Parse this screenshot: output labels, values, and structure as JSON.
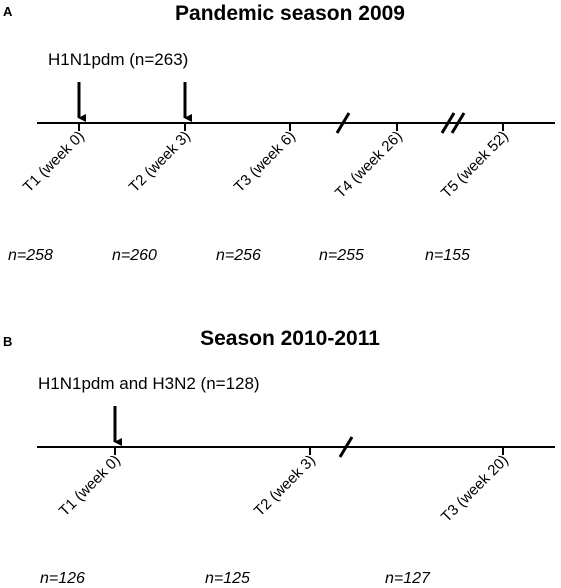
{
  "panels": [
    {
      "letter": "A",
      "title": "Pandemic season 2009",
      "vaccine": "H1N1pdm (n=263)",
      "timepoints": [
        {
          "label": "T1 (week 0)",
          "n": "n=258"
        },
        {
          "label": "T2 (week 3)",
          "n": "n=260"
        },
        {
          "label": "T3 (week 6)",
          "n": "n=256"
        },
        {
          "label": "T4 (week 26)",
          "n": "n=255"
        },
        {
          "label": "T5 (week 52)",
          "n": "n=155"
        }
      ]
    },
    {
      "letter": "B",
      "title": "Season 2010-2011",
      "vaccine": "H1N1pdm and H3N2 (n=128)",
      "timepoints": [
        {
          "label": "T1 (week 0)",
          "n": "n=126"
        },
        {
          "label": "T2 (week 3)",
          "n": "n=125"
        },
        {
          "label": "T3 (week 20)",
          "n": "n=127"
        }
      ]
    }
  ]
}
